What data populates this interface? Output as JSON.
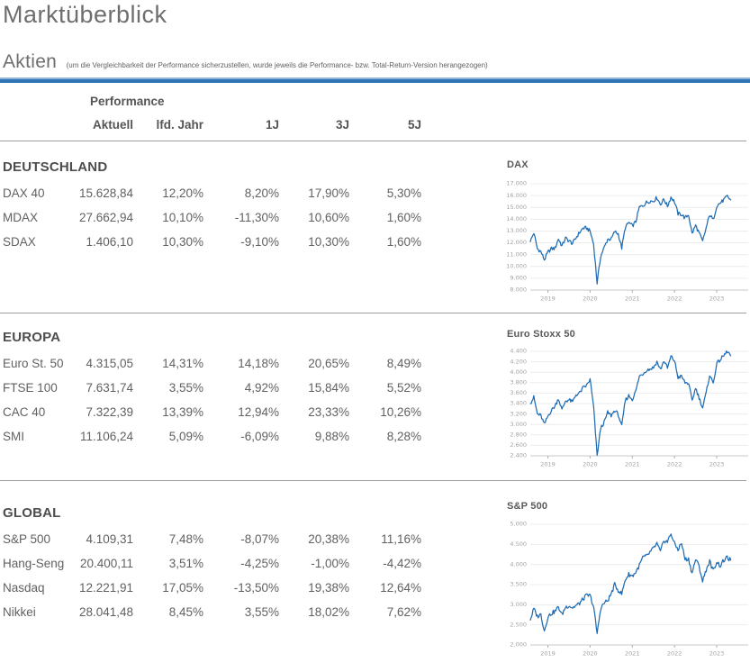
{
  "page": {
    "title": "Marktüberblick",
    "section_title": "Aktien",
    "section_note": "(um die Vergleichbarkeit der Performance sicherzustellen, wurde jeweils die Performance- bzw. Total-Return-Version herangezogen)"
  },
  "table": {
    "header_group": "Performance",
    "columns": [
      "Aktuell",
      "lfd. Jahr",
      "1J",
      "3J",
      "5J"
    ],
    "sections": [
      {
        "name": "DEUTSCHLAND",
        "rows": [
          {
            "label": "DAX 40",
            "values": [
              "15.628,84",
              "12,20%",
              "8,20%",
              "17,90%",
              "5,30%"
            ]
          },
          {
            "label": "MDAX",
            "values": [
              "27.662,94",
              "10,10%",
              "-11,30%",
              "10,60%",
              "1,60%"
            ]
          },
          {
            "label": "SDAX",
            "values": [
              "1.406,10",
              "10,30%",
              "-9,10%",
              "10,30%",
              "1,60%"
            ]
          }
        ]
      },
      {
        "name": "EUROPA",
        "rows": [
          {
            "label": "Euro St. 50",
            "values": [
              "4.315,05",
              "14,31%",
              "14,18%",
              "20,65%",
              "8,49%"
            ]
          },
          {
            "label": "FTSE 100",
            "values": [
              "7.631,74",
              "3,55%",
              "4,92%",
              "15,84%",
              "5,52%"
            ]
          },
          {
            "label": "CAC 40",
            "values": [
              "7.322,39",
              "13,39%",
              "12,94%",
              "23,33%",
              "10,26%"
            ]
          },
          {
            "label": "SMI",
            "values": [
              "11.106,24",
              "5,09%",
              "-6,09%",
              "9,88%",
              "8,28%"
            ]
          }
        ]
      },
      {
        "name": "GLOBAL",
        "rows": [
          {
            "label": "S&P 500",
            "values": [
              "4.109,31",
              "7,48%",
              "-8,07%",
              "20,38%",
              "11,16%"
            ]
          },
          {
            "label": "Hang-Seng",
            "values": [
              "20.400,11",
              "3,51%",
              "-4,25%",
              "-1,00%",
              "-4,42%"
            ]
          },
          {
            "label": "Nasdaq",
            "values": [
              "12.221,91",
              "17,05%",
              "-13,50%",
              "19,38%",
              "12,64%"
            ]
          },
          {
            "label": "Nikkei",
            "values": [
              "28.041,48",
              "8,45%",
              "3,55%",
              "18,02%",
              "7,62%"
            ]
          }
        ]
      }
    ]
  },
  "colors": {
    "accent_blue": "#2e74b5",
    "accent_blue_light": "#8fb2d9",
    "line_blue": "#1e6cb5",
    "grid": "#ececec",
    "axis_line": "#c9c9c9",
    "axis_text": "#a3a3a3",
    "text_gray": "#616161",
    "head_gray": "#4d4d4d",
    "title_gray": "#6e6e6e",
    "hr": "#9e9e9e"
  },
  "chart_data": [
    {
      "type": "line",
      "title": "DAX",
      "x_tick_labels": [
        "2019",
        "2020",
        "2021",
        "2022",
        "2023"
      ],
      "tick_indices": [
        5,
        17,
        29,
        41,
        53
      ],
      "ylim": [
        8000,
        17000
      ],
      "ytick_step": 1000,
      "data_span": 0.92,
      "height": 142,
      "values": [
        12100,
        12850,
        11500,
        11250,
        10560,
        11200,
        11500,
        11530,
        12340,
        11730,
        12400,
        12170,
        11940,
        12430,
        12870,
        13240,
        13250,
        12980,
        11890,
        8600,
        10860,
        11590,
        12310,
        12310,
        12945,
        12760,
        11560,
        13290,
        13720,
        13430,
        13790,
        15010,
        15140,
        15420,
        15530,
        15540,
        15840,
        15260,
        15690,
        15100,
        15880,
        15470,
        14460,
        14410,
        14100,
        14390,
        12780,
        13480,
        12830,
        12110,
        13250,
        14400,
        13920,
        15130,
        15370,
        15630,
        15920,
        15630
      ]
    },
    {
      "type": "line",
      "title": "Euro Stoxx 50",
      "x_tick_labels": [
        "2019",
        "2020",
        "2021",
        "2022",
        "2023"
      ],
      "tick_indices": [
        5,
        17,
        29,
        41,
        53
      ],
      "ylim": [
        2400,
        4400
      ],
      "ytick_step": 200,
      "data_span": 0.92,
      "height": 140,
      "values": [
        3400,
        3520,
        3200,
        3170,
        3000,
        3160,
        3270,
        3350,
        3500,
        3280,
        3450,
        3470,
        3430,
        3570,
        3600,
        3700,
        3745,
        3860,
        3330,
        2400,
        2930,
        3040,
        3230,
        3170,
        3270,
        3190,
        2960,
        3460,
        3550,
        3480,
        3640,
        3920,
        3970,
        4040,
        4060,
        4090,
        4200,
        4050,
        4220,
        4080,
        4300,
        4220,
        3900,
        3920,
        3800,
        3790,
        3450,
        3700,
        3510,
        3320,
        3600,
        3950,
        3790,
        4160,
        4240,
        4315,
        4400,
        4315
      ]
    },
    {
      "type": "line",
      "title": "S&P 500",
      "x_tick_labels": [
        "2019",
        "2020",
        "2021",
        "2022",
        "2023"
      ],
      "tick_indices": [
        5,
        17,
        29,
        41,
        53
      ],
      "ylim": [
        2000,
        5000
      ],
      "ytick_step": 500,
      "data_span": 0.92,
      "height": 158,
      "values": [
        2620,
        2900,
        2710,
        2760,
        2350,
        2700,
        2785,
        2835,
        2945,
        2750,
        2940,
        2980,
        2925,
        2975,
        3035,
        3140,
        3230,
        3225,
        2950,
        2280,
        2910,
        3045,
        3100,
        3270,
        3500,
        3360,
        3270,
        3620,
        3755,
        3715,
        3810,
        3975,
        4180,
        4200,
        4300,
        4400,
        4520,
        4310,
        4600,
        4565,
        4770,
        4515,
        4375,
        4530,
        4130,
        4135,
        3785,
        4130,
        3955,
        3585,
        3870,
        4080,
        3840,
        4070,
        3970,
        4100,
        4170,
        4110
      ]
    }
  ]
}
